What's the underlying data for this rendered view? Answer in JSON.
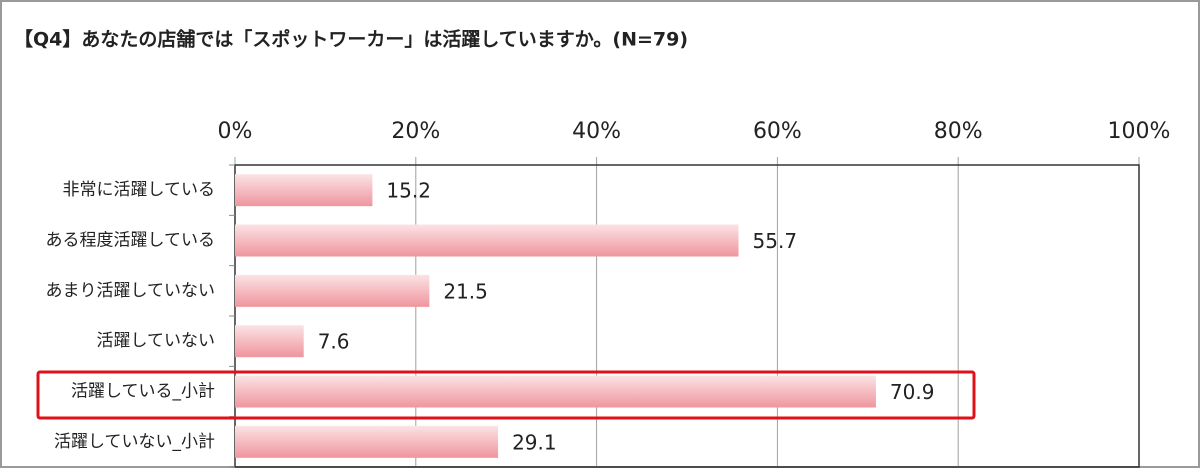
{
  "chart_data": {
    "type": "bar",
    "orientation": "horizontal",
    "title": "【Q4】あなたの店舗では「スポットワーカー」は活躍していますか。(N=79)",
    "categories": [
      "非常に活躍している",
      "ある程度活躍している",
      "あまり活躍していない",
      "活躍していない",
      "活躍している_小計",
      "活躍していない_小計"
    ],
    "values": [
      15.2,
      55.7,
      21.5,
      7.6,
      70.9,
      29.1
    ],
    "color": "#ef959d",
    "xlim": [
      0,
      100
    ],
    "xticks": [
      {
        "value": 0,
        "label": "0%"
      },
      {
        "value": 20,
        "label": "20%"
      },
      {
        "value": 40,
        "label": "40%"
      },
      {
        "value": 60,
        "label": "60%"
      },
      {
        "value": 80,
        "label": "80%"
      },
      {
        "value": 100,
        "label": "100%"
      }
    ],
    "grid": true
  }
}
